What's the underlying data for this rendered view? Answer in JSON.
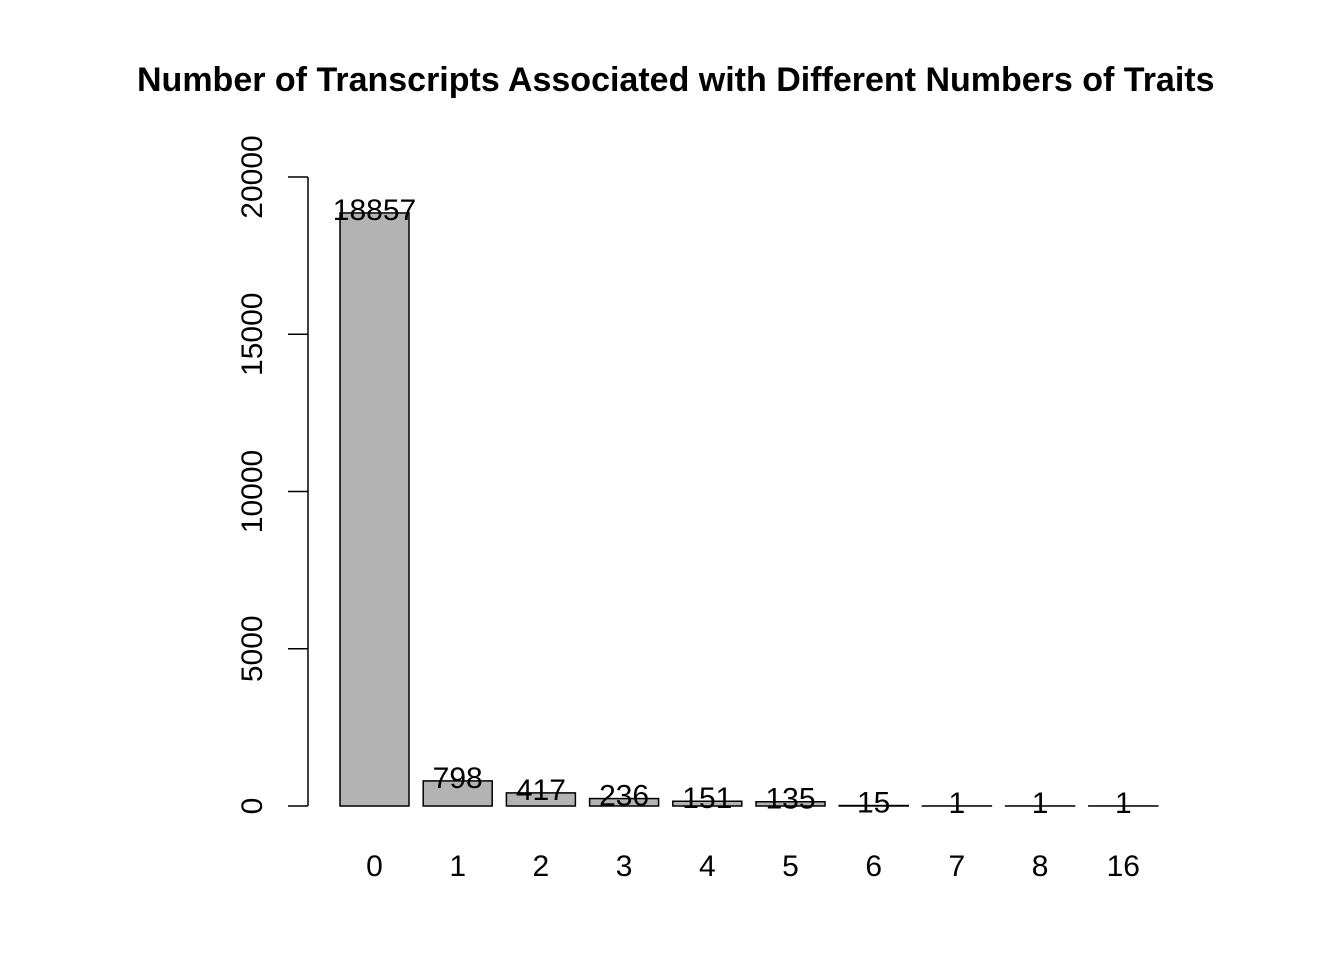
{
  "chart_data": {
    "type": "bar",
    "title": "Number of Transcripts Associated with Different Numbers of Traits",
    "xlabel": "",
    "ylabel": "",
    "categories": [
      "0",
      "1",
      "2",
      "3",
      "4",
      "5",
      "6",
      "7",
      "8",
      "16"
    ],
    "values": [
      18857,
      798,
      417,
      236,
      151,
      135,
      15,
      1,
      1,
      1
    ],
    "data_labels": [
      "18857",
      "798",
      "417",
      "236",
      "151",
      "135",
      "15",
      "1",
      "1",
      "1"
    ],
    "y_ticks": [
      0,
      5000,
      10000,
      15000,
      20000
    ],
    "y_tick_labels": [
      "0",
      "5000",
      "10000",
      "15000",
      "20000"
    ],
    "ylim": [
      0,
      20000
    ],
    "grid": false,
    "legend": "none",
    "bar_color": "#b3b3b3",
    "bar_border_color": "#000000"
  }
}
